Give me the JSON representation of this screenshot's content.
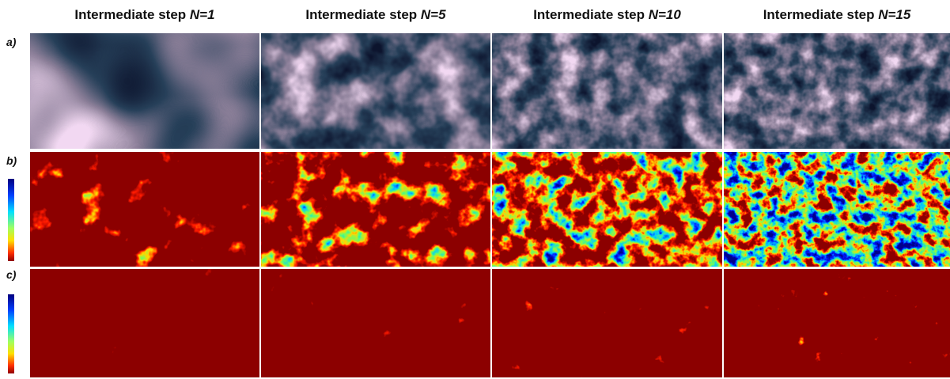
{
  "columns": [
    {
      "label": "Intermediate step",
      "n": "N=1"
    },
    {
      "label": "Intermediate step",
      "n": "N=5"
    },
    {
      "label": "Intermediate step",
      "n": "N=10"
    },
    {
      "label": "Intermediate step",
      "n": "N=15"
    }
  ],
  "rows": [
    "a)",
    "b)",
    "c)"
  ]
}
